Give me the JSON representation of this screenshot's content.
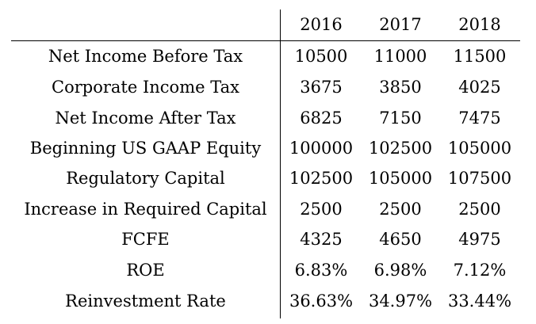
{
  "table": {
    "headers": [
      "",
      "2016",
      "2017",
      "2018"
    ],
    "rows": [
      {
        "label": "Net Income Before Tax",
        "values": [
          "10500",
          "11000",
          "11500"
        ]
      },
      {
        "label": "Corporate Income Tax",
        "values": [
          "3675",
          "3850",
          "4025"
        ]
      },
      {
        "label": "Net Income After Tax",
        "values": [
          "6825",
          "7150",
          "7475"
        ]
      },
      {
        "label": "Beginning US GAAP Equity",
        "values": [
          "100000",
          "102500",
          "105000"
        ]
      },
      {
        "label": "Regulatory Capital",
        "values": [
          "102500",
          "105000",
          "107500"
        ]
      },
      {
        "label": "Increase in Required Capital",
        "values": [
          "2500",
          "2500",
          "2500"
        ]
      },
      {
        "label": "FCFE",
        "values": [
          "4325",
          "4650",
          "4975"
        ]
      },
      {
        "label": "ROE",
        "values": [
          "6.83%",
          "6.98%",
          "7.12%"
        ]
      },
      {
        "label": "Reinvestment Rate",
        "values": [
          "36.63%",
          "34.97%",
          "33.44%"
        ]
      }
    ]
  }
}
